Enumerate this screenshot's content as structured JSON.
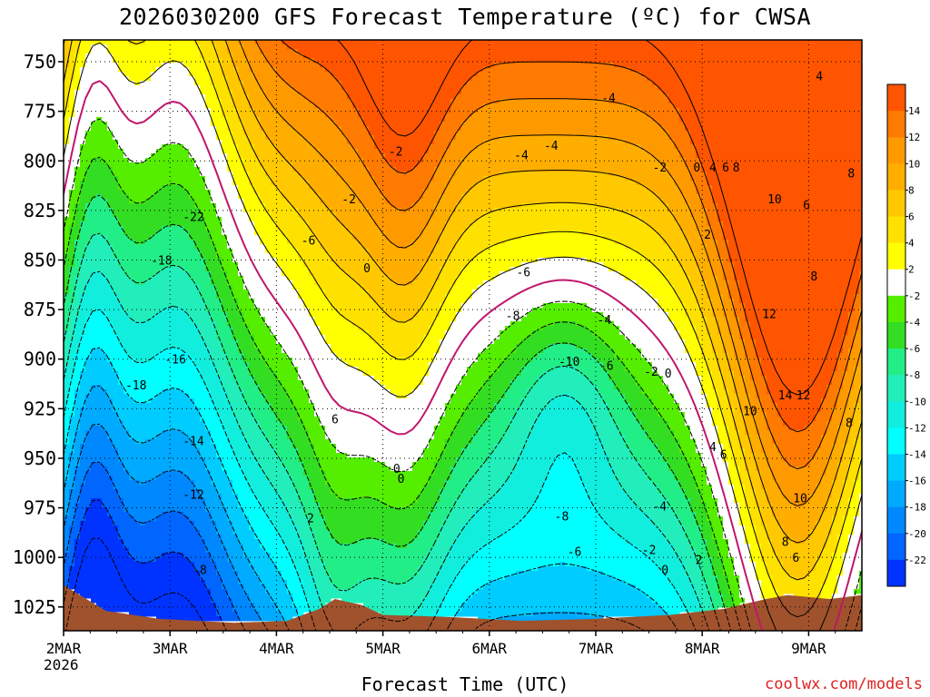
{
  "title": "2026030200 GFS Forecast Temperature (ºC) for CWSA",
  "credit": "coolwx.com/models",
  "chart_data": {
    "type": "heatmap",
    "title": "2026030200 GFS Forecast Temperature (ºC) for CWSA",
    "xlabel": "Forecast Time (UTC)",
    "ylabel": "",
    "y_axis": {
      "unit": "hPa",
      "inverted": true,
      "range": [
        1037,
        739
      ],
      "ticks": [
        750,
        775,
        800,
        825,
        850,
        875,
        900,
        925,
        950,
        975,
        1000,
        1025
      ]
    },
    "x_axis": {
      "range_days": [
        0,
        7.5
      ],
      "ticks": [
        {
          "day": 0,
          "label": "2MAR",
          "sublabel": "2026"
        },
        {
          "day": 1,
          "label": "3MAR"
        },
        {
          "day": 2,
          "label": "4MAR"
        },
        {
          "day": 3,
          "label": "5MAR"
        },
        {
          "day": 4,
          "label": "6MAR"
        },
        {
          "day": 5,
          "label": "7MAR"
        },
        {
          "day": 6,
          "label": "8MAR"
        },
        {
          "day": 7,
          "label": "9MAR"
        }
      ]
    },
    "grid": true,
    "colorbar": {
      "placement": "right",
      "bins": [
        {
          "low": 14,
          "high": 16,
          "color": "#ff5500"
        },
        {
          "low": 12,
          "high": 14,
          "color": "#ff7a00"
        },
        {
          "low": 10,
          "high": 12,
          "color": "#ff9900"
        },
        {
          "low": 8,
          "high": 10,
          "color": "#ffae00"
        },
        {
          "low": 6,
          "high": 8,
          "color": "#ffc800"
        },
        {
          "low": 4,
          "high": 6,
          "color": "#ffe100"
        },
        {
          "low": 2,
          "high": 4,
          "color": "#ffff00"
        },
        {
          "low": -2,
          "high": 2,
          "color": "#ffffff"
        },
        {
          "low": -4,
          "high": -2,
          "color": "#55ee00"
        },
        {
          "low": -6,
          "high": -4,
          "color": "#33dd22"
        },
        {
          "low": -8,
          "high": -6,
          "color": "#22ee88"
        },
        {
          "low": -10,
          "high": -8,
          "color": "#22eebb"
        },
        {
          "low": -12,
          "high": -10,
          "color": "#11eedd"
        },
        {
          "low": -14,
          "high": -12,
          "color": "#00ffff"
        },
        {
          "low": -16,
          "high": -14,
          "color": "#00ccff"
        },
        {
          "low": -18,
          "high": -16,
          "color": "#00aaff"
        },
        {
          "low": -20,
          "high": -18,
          "color": "#0088ff"
        },
        {
          "low": -22,
          "high": -20,
          "color": "#0066ff"
        },
        {
          "low": -24,
          "high": -22,
          "color": "#0033ff"
        }
      ],
      "labels": [
        "14",
        "12",
        "10",
        "8",
        "6",
        "4",
        "2",
        "-2",
        "-4",
        "-6",
        "-8",
        "-10",
        "-12",
        "-14",
        "-16",
        "-18",
        "-20",
        "-22"
      ]
    },
    "contour_labels": [
      {
        "day": 1.22,
        "p": 828,
        "text": "-22"
      },
      {
        "day": 0.92,
        "p": 850,
        "text": "-18"
      },
      {
        "day": 1.05,
        "p": 900,
        "text": "-16"
      },
      {
        "day": 0.68,
        "p": 913,
        "text": "-18"
      },
      {
        "day": 1.22,
        "p": 941,
        "text": "-14"
      },
      {
        "day": 1.22,
        "p": 968,
        "text": "-12"
      },
      {
        "day": 1.28,
        "p": 1006,
        "text": "-8"
      },
      {
        "day": 2.3,
        "p": 840,
        "text": "-6"
      },
      {
        "day": 2.68,
        "p": 819,
        "text": "-2"
      },
      {
        "day": 2.85,
        "p": 854,
        "text": "0"
      },
      {
        "day": 3.12,
        "p": 795,
        "text": "-2"
      },
      {
        "day": 2.55,
        "p": 930,
        "text": "6"
      },
      {
        "day": 2.32,
        "p": 980,
        "text": "2"
      },
      {
        "day": 3.13,
        "p": 955,
        "text": "0"
      },
      {
        "day": 3.17,
        "p": 960,
        "text": "0"
      },
      {
        "day": 4.3,
        "p": 797,
        "text": "-4"
      },
      {
        "day": 4.58,
        "p": 792,
        "text": "-4"
      },
      {
        "day": 5.12,
        "p": 768,
        "text": "-4"
      },
      {
        "day": 4.32,
        "p": 856,
        "text": "-6"
      },
      {
        "day": 4.22,
        "p": 878,
        "text": "-8"
      },
      {
        "day": 5.08,
        "p": 880,
        "text": "-4"
      },
      {
        "day": 4.75,
        "p": 901,
        "text": "-10"
      },
      {
        "day": 5.1,
        "p": 903,
        "text": "-6"
      },
      {
        "day": 5.52,
        "p": 906,
        "text": "-2"
      },
      {
        "day": 5.68,
        "p": 907,
        "text": "0"
      },
      {
        "day": 4.68,
        "p": 979,
        "text": "-8"
      },
      {
        "day": 4.8,
        "p": 997,
        "text": "-6"
      },
      {
        "day": 5.6,
        "p": 974,
        "text": "-4"
      },
      {
        "day": 5.5,
        "p": 996,
        "text": "-2"
      },
      {
        "day": 5.65,
        "p": 1006,
        "text": "0"
      },
      {
        "day": 5.6,
        "p": 803,
        "text": "-2"
      },
      {
        "day": 5.95,
        "p": 803,
        "text": "0"
      },
      {
        "day": 6.1,
        "p": 803,
        "text": "4"
      },
      {
        "day": 6.22,
        "p": 803,
        "text": "6"
      },
      {
        "day": 6.32,
        "p": 803,
        "text": "8"
      },
      {
        "day": 6.05,
        "p": 837,
        "text": "2"
      },
      {
        "day": 6.68,
        "p": 819,
        "text": "10"
      },
      {
        "day": 6.98,
        "p": 822,
        "text": "6"
      },
      {
        "day": 7.1,
        "p": 757,
        "text": "4"
      },
      {
        "day": 7.05,
        "p": 858,
        "text": "8"
      },
      {
        "day": 6.63,
        "p": 877,
        "text": "12"
      },
      {
        "day": 6.78,
        "p": 918,
        "text": "14"
      },
      {
        "day": 6.95,
        "p": 918,
        "text": "12"
      },
      {
        "day": 6.45,
        "p": 926,
        "text": "10"
      },
      {
        "day": 7.4,
        "p": 806,
        "text": "8"
      },
      {
        "day": 7.38,
        "p": 932,
        "text": "8"
      },
      {
        "day": 6.1,
        "p": 944,
        "text": "4"
      },
      {
        "day": 6.2,
        "p": 948,
        "text": "6"
      },
      {
        "day": 6.92,
        "p": 970,
        "text": "10"
      },
      {
        "day": 6.78,
        "p": 992,
        "text": "8"
      },
      {
        "day": 6.88,
        "p": 1000,
        "text": "6"
      },
      {
        "day": 5.97,
        "p": 1001,
        "text": "2"
      }
    ]
  }
}
